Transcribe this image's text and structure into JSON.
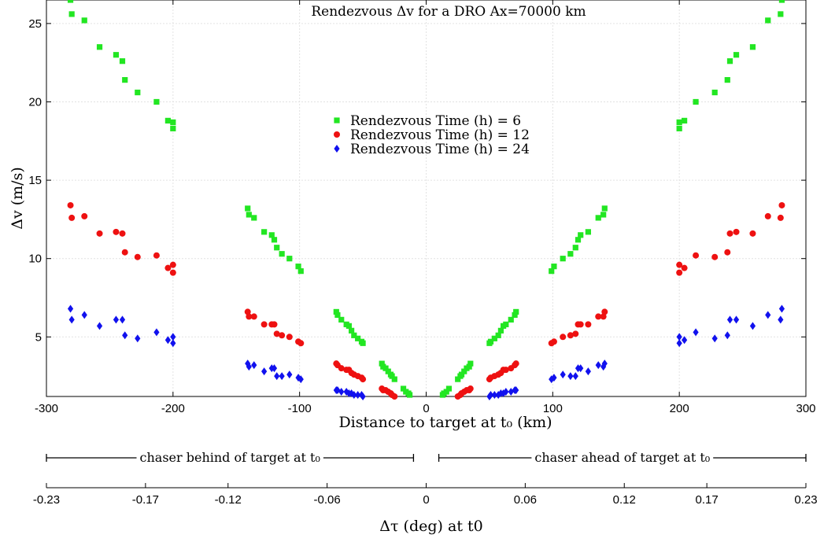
{
  "chart_data": {
    "type": "scatter",
    "title": "Rendezvous Δv for a DRO Ax=70000 km",
    "xlabel": "Distance to target at t₀ (km)",
    "ylabel": "Δv (m/s)",
    "xlim": [
      -300,
      300
    ],
    "ylim": [
      1.2,
      26.5
    ],
    "xticks": [
      "-300",
      "-200",
      "-100",
      "0",
      "100",
      "200",
      "300"
    ],
    "yticks": [
      "5",
      "10",
      "15",
      "20",
      "25"
    ],
    "grid": true,
    "legend_position": "upper-center",
    "series": [
      {
        "name": "Rendezvous Time (h) = 6",
        "marker": "square",
        "color": "#22e622",
        "points": [
          [
            -281,
            26.5
          ],
          [
            -280,
            25.6
          ],
          [
            -270,
            25.2
          ],
          [
            -258,
            23.5
          ],
          [
            -245,
            23.0
          ],
          [
            -240,
            22.6
          ],
          [
            -238,
            21.4
          ],
          [
            -228,
            20.6
          ],
          [
            -213,
            20.0
          ],
          [
            -204,
            18.8
          ],
          [
            -200,
            18.7
          ],
          [
            -200,
            18.3
          ],
          [
            -141,
            13.2
          ],
          [
            -140,
            12.8
          ],
          [
            -136,
            12.6
          ],
          [
            -128,
            11.7
          ],
          [
            -122,
            11.5
          ],
          [
            -120,
            11.2
          ],
          [
            -118,
            10.7
          ],
          [
            -114,
            10.3
          ],
          [
            -108,
            10.0
          ],
          [
            -101,
            9.5
          ],
          [
            -99,
            9.2
          ],
          [
            -71,
            6.6
          ],
          [
            -70,
            6.4
          ],
          [
            -67,
            6.1
          ],
          [
            -63,
            5.8
          ],
          [
            -61,
            5.7
          ],
          [
            -59,
            5.4
          ],
          [
            -57,
            5.1
          ],
          [
            -54,
            4.9
          ],
          [
            -51,
            4.7
          ],
          [
            -50,
            4.6
          ],
          [
            -35,
            3.3
          ],
          [
            -34,
            3.1
          ],
          [
            -32,
            3.0
          ],
          [
            -30,
            2.8
          ],
          [
            -28,
            2.6
          ],
          [
            -27,
            2.5
          ],
          [
            -25,
            2.3
          ],
          [
            -18,
            1.7
          ],
          [
            -16,
            1.5
          ],
          [
            -14,
            1.4
          ],
          [
            -13,
            1.3
          ],
          [
            13,
            1.3
          ],
          [
            14,
            1.4
          ],
          [
            16,
            1.5
          ],
          [
            18,
            1.7
          ],
          [
            25,
            2.3
          ],
          [
            27,
            2.5
          ],
          [
            28,
            2.6
          ],
          [
            30,
            2.8
          ],
          [
            32,
            3.0
          ],
          [
            34,
            3.1
          ],
          [
            35,
            3.3
          ],
          [
            50,
            4.6
          ],
          [
            51,
            4.7
          ],
          [
            54,
            4.9
          ],
          [
            57,
            5.1
          ],
          [
            59,
            5.4
          ],
          [
            61,
            5.7
          ],
          [
            63,
            5.8
          ],
          [
            67,
            6.1
          ],
          [
            70,
            6.4
          ],
          [
            71,
            6.6
          ],
          [
            99,
            9.2
          ],
          [
            101,
            9.5
          ],
          [
            108,
            10.0
          ],
          [
            114,
            10.3
          ],
          [
            118,
            10.7
          ],
          [
            120,
            11.2
          ],
          [
            122,
            11.5
          ],
          [
            128,
            11.7
          ],
          [
            136,
            12.6
          ],
          [
            140,
            12.8
          ],
          [
            141,
            13.2
          ],
          [
            200,
            18.3
          ],
          [
            200,
            18.7
          ],
          [
            204,
            18.8
          ],
          [
            213,
            20.0
          ],
          [
            228,
            20.6
          ],
          [
            238,
            21.4
          ],
          [
            240,
            22.6
          ],
          [
            245,
            23.0
          ],
          [
            258,
            23.5
          ],
          [
            270,
            25.2
          ],
          [
            280,
            25.6
          ],
          [
            281,
            26.5
          ]
        ]
      },
      {
        "name": "Rendezvous Time (h) = 12",
        "marker": "circle",
        "color": "#ee1111",
        "points": [
          [
            -281,
            13.4
          ],
          [
            -280,
            12.6
          ],
          [
            -270,
            12.7
          ],
          [
            -258,
            11.6
          ],
          [
            -245,
            11.7
          ],
          [
            -240,
            11.6
          ],
          [
            -238,
            10.4
          ],
          [
            -228,
            10.1
          ],
          [
            -213,
            10.2
          ],
          [
            -204,
            9.4
          ],
          [
            -200,
            9.6
          ],
          [
            -200,
            9.1
          ],
          [
            -141,
            6.6
          ],
          [
            -140,
            6.3
          ],
          [
            -136,
            6.3
          ],
          [
            -128,
            5.8
          ],
          [
            -122,
            5.8
          ],
          [
            -120,
            5.8
          ],
          [
            -118,
            5.2
          ],
          [
            -114,
            5.1
          ],
          [
            -108,
            5.0
          ],
          [
            -101,
            4.7
          ],
          [
            -99,
            4.6
          ],
          [
            -71,
            3.3
          ],
          [
            -70,
            3.2
          ],
          [
            -67,
            3.0
          ],
          [
            -63,
            2.9
          ],
          [
            -61,
            2.9
          ],
          [
            -59,
            2.7
          ],
          [
            -57,
            2.6
          ],
          [
            -54,
            2.5
          ],
          [
            -51,
            2.4
          ],
          [
            -50,
            2.3
          ],
          [
            -35,
            1.7
          ],
          [
            -34,
            1.6
          ],
          [
            -32,
            1.6
          ],
          [
            -30,
            1.5
          ],
          [
            -28,
            1.4
          ],
          [
            -27,
            1.3
          ],
          [
            -25,
            1.2
          ],
          [
            25,
            1.2
          ],
          [
            27,
            1.3
          ],
          [
            28,
            1.4
          ],
          [
            30,
            1.5
          ],
          [
            32,
            1.6
          ],
          [
            34,
            1.6
          ],
          [
            35,
            1.7
          ],
          [
            50,
            2.3
          ],
          [
            51,
            2.4
          ],
          [
            54,
            2.5
          ],
          [
            57,
            2.6
          ],
          [
            59,
            2.7
          ],
          [
            61,
            2.9
          ],
          [
            63,
            2.9
          ],
          [
            67,
            3.0
          ],
          [
            70,
            3.2
          ],
          [
            71,
            3.3
          ],
          [
            99,
            4.6
          ],
          [
            101,
            4.7
          ],
          [
            108,
            5.0
          ],
          [
            114,
            5.1
          ],
          [
            118,
            5.2
          ],
          [
            120,
            5.8
          ],
          [
            122,
            5.8
          ],
          [
            128,
            5.8
          ],
          [
            136,
            6.3
          ],
          [
            140,
            6.3
          ],
          [
            141,
            6.6
          ],
          [
            200,
            9.1
          ],
          [
            200,
            9.6
          ],
          [
            204,
            9.4
          ],
          [
            213,
            10.2
          ],
          [
            228,
            10.1
          ],
          [
            238,
            10.4
          ],
          [
            240,
            11.6
          ],
          [
            245,
            11.7
          ],
          [
            258,
            11.6
          ],
          [
            270,
            12.7
          ],
          [
            280,
            12.6
          ],
          [
            281,
            13.4
          ]
        ]
      },
      {
        "name": "Rendezvous Time (h) = 24",
        "marker": "diamond",
        "color": "#1111ee",
        "points": [
          [
            -281,
            6.8
          ],
          [
            -280,
            6.1
          ],
          [
            -270,
            6.4
          ],
          [
            -258,
            5.7
          ],
          [
            -245,
            6.1
          ],
          [
            -240,
            6.1
          ],
          [
            -238,
            5.1
          ],
          [
            -228,
            4.9
          ],
          [
            -213,
            5.3
          ],
          [
            -204,
            4.8
          ],
          [
            -200,
            5.0
          ],
          [
            -200,
            4.6
          ],
          [
            -141,
            3.3
          ],
          [
            -140,
            3.1
          ],
          [
            -136,
            3.2
          ],
          [
            -128,
            2.8
          ],
          [
            -122,
            3.0
          ],
          [
            -120,
            3.0
          ],
          [
            -118,
            2.5
          ],
          [
            -114,
            2.5
          ],
          [
            -108,
            2.6
          ],
          [
            -101,
            2.4
          ],
          [
            -99,
            2.3
          ],
          [
            -71,
            1.6
          ],
          [
            -70,
            1.6
          ],
          [
            -67,
            1.5
          ],
          [
            -63,
            1.5
          ],
          [
            -61,
            1.4
          ],
          [
            -59,
            1.4
          ],
          [
            -57,
            1.3
          ],
          [
            -54,
            1.3
          ],
          [
            -51,
            1.3
          ],
          [
            -50,
            1.2
          ],
          [
            50,
            1.2
          ],
          [
            51,
            1.3
          ],
          [
            54,
            1.3
          ],
          [
            57,
            1.3
          ],
          [
            59,
            1.4
          ],
          [
            61,
            1.4
          ],
          [
            63,
            1.5
          ],
          [
            67,
            1.5
          ],
          [
            70,
            1.6
          ],
          [
            71,
            1.6
          ],
          [
            99,
            2.3
          ],
          [
            101,
            2.4
          ],
          [
            108,
            2.6
          ],
          [
            114,
            2.5
          ],
          [
            118,
            2.5
          ],
          [
            120,
            3.0
          ],
          [
            122,
            3.0
          ],
          [
            128,
            2.8
          ],
          [
            136,
            3.2
          ],
          [
            140,
            3.1
          ],
          [
            141,
            3.3
          ],
          [
            200,
            4.6
          ],
          [
            200,
            5.0
          ],
          [
            204,
            4.8
          ],
          [
            213,
            5.3
          ],
          [
            228,
            4.9
          ],
          [
            238,
            5.1
          ],
          [
            240,
            6.1
          ],
          [
            245,
            6.1
          ],
          [
            258,
            5.7
          ],
          [
            270,
            6.4
          ],
          [
            280,
            6.1
          ],
          [
            281,
            6.8
          ]
        ]
      }
    ]
  },
  "annotations": {
    "behind_label": "chaser behind of target at t₀",
    "ahead_label": "chaser ahead of target at t₀",
    "behind_range_km": [
      -300,
      -10
    ],
    "ahead_range_km": [
      10,
      300
    ]
  },
  "secondary_axis": {
    "label": "Δτ (deg) at t0",
    "xlim": [
      -0.23,
      0.23
    ],
    "ticks": [
      "-0.23",
      "-0.17",
      "-0.12",
      "-0.06",
      "0",
      "0.06",
      "0.12",
      "0.17",
      "0.23"
    ],
    "tick_values": [
      -0.23,
      -0.17,
      -0.12,
      -0.06,
      0,
      0.06,
      0.12,
      0.17,
      0.23
    ]
  }
}
